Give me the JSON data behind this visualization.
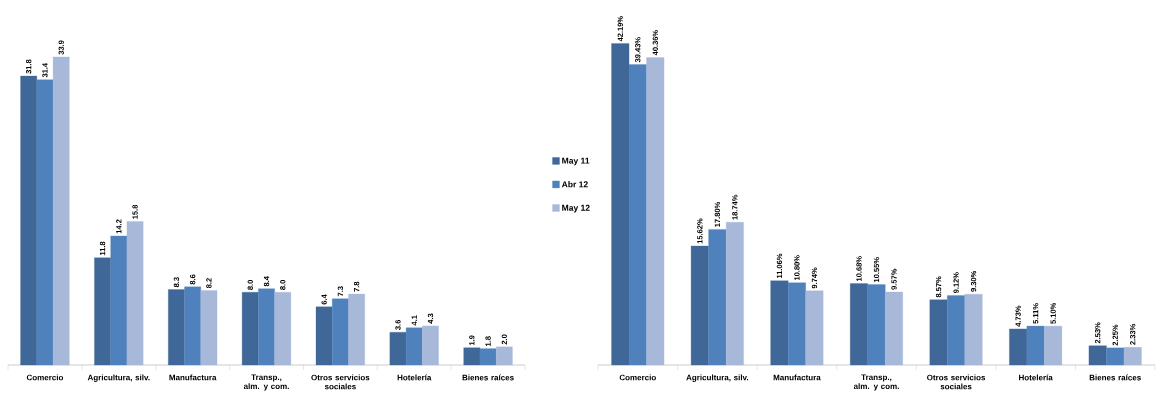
{
  "chart_data": [
    {
      "type": "bar",
      "categories": [
        "Comercio",
        "Agricultura, silv.",
        "Manufactura",
        "Transp., alm. y com.",
        "Otros servicios sociales",
        "Hotelería",
        "Bienes raíces"
      ],
      "series": [
        {
          "color": "#3f6797",
          "values": [
            31.8,
            11.8,
            8.3,
            8.0,
            6.4,
            3.6,
            1.9
          ],
          "value_labels": [
            "31.8",
            "11.8",
            "8.3",
            "8.0",
            "6.4",
            "3.6",
            "1.9"
          ]
        },
        {
          "color": "#4f81bd",
          "values": [
            31.4,
            14.2,
            8.6,
            8.4,
            7.3,
            4.1,
            1.8
          ],
          "value_labels": [
            "31.4",
            "14.2",
            "8.6",
            "8.4",
            "7.3",
            "4.1",
            "1.8"
          ]
        },
        {
          "color": "#a7b8d9",
          "values": [
            33.9,
            15.8,
            8.2,
            8.0,
            7.8,
            4.3,
            2.0
          ],
          "value_labels": [
            "33.9",
            "15.8",
            "8.2",
            "8.0",
            "7.8",
            "4.3",
            "2.0"
          ]
        }
      ]
    },
    {
      "type": "bar",
      "categories": [
        "Comercio",
        "Agricultura, silv.",
        "Manufactura",
        "Transp., alm. y com.",
        "Otros servicios sociales",
        "Hotelería",
        "Bienes raíces"
      ],
      "legend": "left",
      "series": [
        {
          "name": "May 11",
          "color": "#3f6797",
          "values": [
            42.19,
            15.62,
            11.06,
            10.68,
            8.57,
            4.73,
            2.53
          ],
          "value_labels": [
            "42.19%",
            "15.62%",
            "11.06%",
            "10.68%",
            "8.57%",
            "4.73%",
            "2.53%"
          ]
        },
        {
          "name": "Abr 12",
          "color": "#4f81bd",
          "values": [
            39.43,
            17.8,
            10.8,
            10.55,
            9.12,
            5.11,
            2.25
          ],
          "value_labels": [
            "39.43%",
            "17.80%",
            "10.80%",
            "10.55%",
            "9.12%",
            "5.11%",
            "2.25%"
          ]
        },
        {
          "name": "May 12",
          "color": "#a7b8d9",
          "values": [
            40.36,
            18.74,
            9.74,
            9.57,
            9.3,
            5.1,
            2.33
          ],
          "value_labels": [
            "40.36%",
            "18.74%",
            "9.74%",
            "9.57%",
            "9.30%",
            "5.10%",
            "2.33%"
          ]
        }
      ]
    }
  ]
}
